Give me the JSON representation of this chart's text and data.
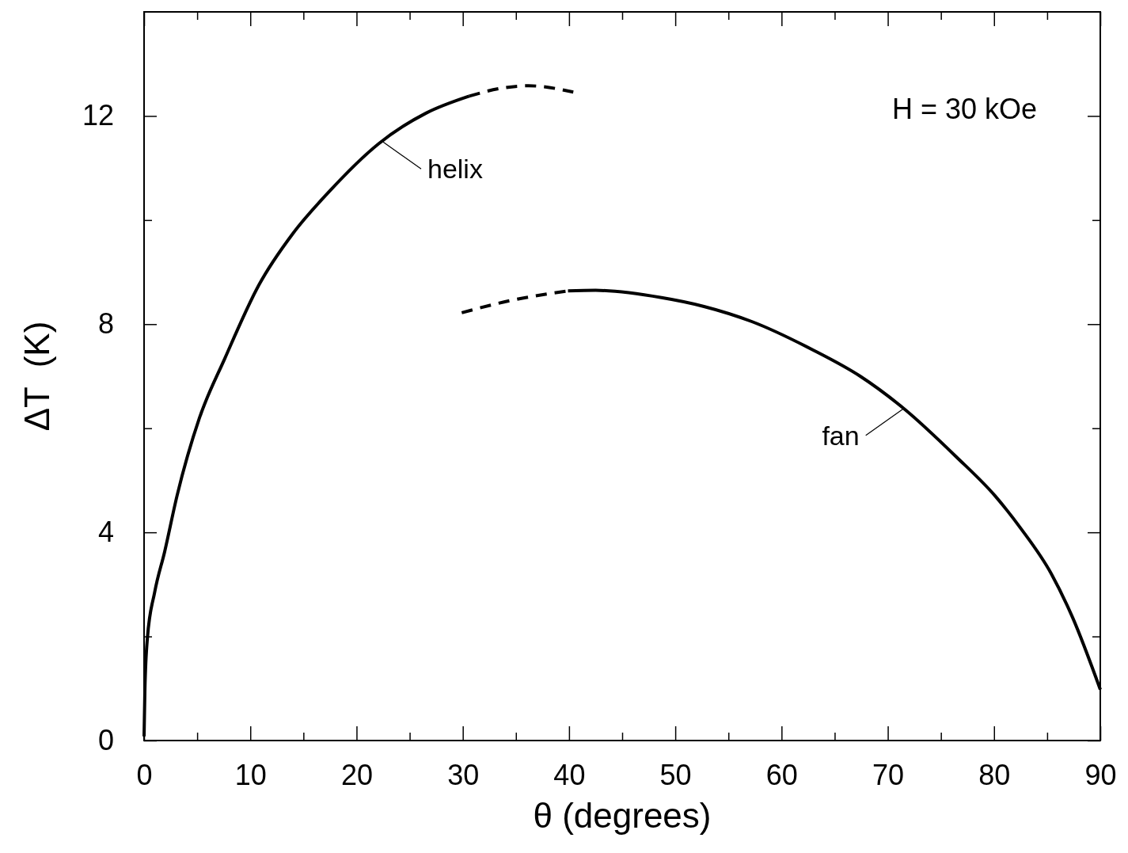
{
  "chart_data": {
    "type": "line",
    "xlabel": "θ (degrees)",
    "ylabel": "ΔT  (K)",
    "xlim": [
      0,
      90
    ],
    "ylim": [
      0,
      14
    ],
    "xticks": [
      0,
      {
        "value": 5,
        "label": null
      },
      10,
      {
        "value": 15,
        "label": null
      },
      20,
      {
        "value": 25,
        "label": null
      },
      30,
      {
        "value": 35,
        "label": null
      },
      40,
      {
        "value": 45,
        "label": null
      },
      50,
      {
        "value": 55,
        "label": null
      },
      60,
      {
        "value": 65,
        "label": null
      },
      70,
      {
        "value": 75,
        "label": null
      },
      80,
      {
        "value": 85,
        "label": null
      },
      90
    ],
    "yticks": [
      0,
      {
        "value": 2,
        "label": null
      },
      4,
      {
        "value": 6,
        "label": null
      },
      8,
      {
        "value": 10,
        "label": null
      },
      12
    ],
    "grid": false,
    "series": [
      {
        "color": "#000000",
        "line_style": "solid",
        "x": [
          0,
          0.08,
          0.32,
          1.0,
          1.94,
          3.1,
          5.2,
          7.6,
          10.8,
          14.0,
          17.3,
          22.1,
          26.5,
          30.6
        ],
        "values": [
          0.08,
          0.99,
          1.98,
          2.85,
          3.63,
          4.7,
          6.19,
          7.34,
          8.75,
          9.74,
          10.52,
          11.47,
          12.05,
          12.38
        ]
      },
      {
        "color": "#000000",
        "line_style": "dashed",
        "x": [
          30.6,
          33.8,
          36.2,
          40.4
        ],
        "values": [
          12.38,
          12.54,
          12.58,
          12.46
        ]
      },
      {
        "color": "#000000",
        "line_style": "dashed",
        "x": [
          29.9,
          34.4,
          39.9
        ],
        "values": [
          8.22,
          8.45,
          8.64
        ]
      },
      {
        "color": "#000000",
        "line_style": "solid",
        "x": [
          39.9,
          42.5,
          48.7,
          52.7,
          57.2,
          62.9,
          67.4,
          71.5,
          76.4,
          80.1,
          82.5,
          85.4,
          87.4,
          90
        ],
        "values": [
          8.64,
          8.65,
          8.51,
          8.34,
          8.05,
          7.51,
          7.0,
          6.38,
          5.46,
          4.7,
          4.08,
          3.2,
          2.36,
          0.98
        ]
      }
    ],
    "annotations": [
      "H = 30 kOe",
      {
        "text": "helix",
        "x": 22.5,
        "y": 11.5
      },
      {
        "text": "fan",
        "x": 71.5,
        "y": 6.38
      }
    ]
  }
}
